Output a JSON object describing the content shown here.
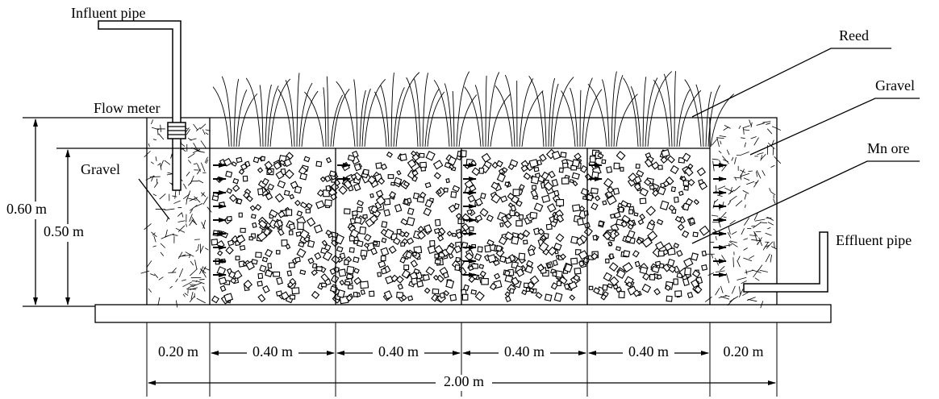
{
  "labels": {
    "influent_pipe": "Influent pipe",
    "flow_meter": "Flow meter",
    "gravel_left": "Gravel",
    "reed": "Reed",
    "gravel_right": "Gravel",
    "mn_ore": "Mn ore",
    "effluent_pipe": "Effluent pipe"
  },
  "dimensions": {
    "height_total": "0.60 m",
    "height_fill": "0.50 m",
    "widths": [
      "0.20 m",
      "0.40 m",
      "0.40 m",
      "0.40 m",
      "0.40 m",
      "0.20 m"
    ],
    "length_total": "2.00 m"
  }
}
